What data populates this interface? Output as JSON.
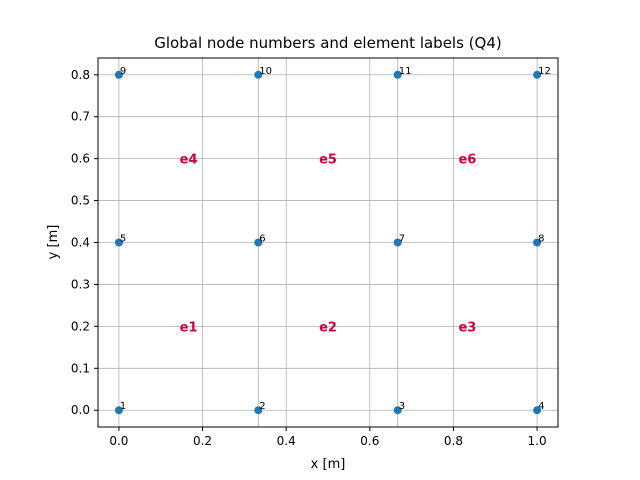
{
  "chart_data": {
    "type": "scatter",
    "title": "Global node numbers and element labels (Q4)",
    "xlabel": "x [m]",
    "ylabel": "y [m]",
    "xlim": [
      -0.05,
      1.05
    ],
    "ylim": [
      -0.04,
      0.84
    ],
    "grid": true,
    "x_ticks": [
      0.0,
      0.2,
      0.4,
      0.6,
      0.8,
      1.0
    ],
    "x_tick_labels": [
      "0.0",
      "0.2",
      "0.4",
      "0.6",
      "0.8",
      "1.0"
    ],
    "y_ticks": [
      0.0,
      0.1,
      0.2,
      0.3,
      0.4,
      0.5,
      0.6,
      0.7,
      0.8
    ],
    "y_tick_labels": [
      "0.0",
      "0.1",
      "0.2",
      "0.3",
      "0.4",
      "0.5",
      "0.6",
      "0.7",
      "0.8"
    ],
    "extra_vertical_gridlines": [
      0.3333,
      0.6667
    ],
    "marker_color": "#1f77b4",
    "element_label_color": "#d1003c",
    "nodes": [
      {
        "id": "1",
        "x": 0.0,
        "y": 0.0
      },
      {
        "id": "2",
        "x": 0.3333,
        "y": 0.0
      },
      {
        "id": "3",
        "x": 0.6667,
        "y": 0.0
      },
      {
        "id": "4",
        "x": 1.0,
        "y": 0.0
      },
      {
        "id": "5",
        "x": 0.0,
        "y": 0.4
      },
      {
        "id": "6",
        "x": 0.3333,
        "y": 0.4
      },
      {
        "id": "7",
        "x": 0.6667,
        "y": 0.4
      },
      {
        "id": "8",
        "x": 1.0,
        "y": 0.4
      },
      {
        "id": "9",
        "x": 0.0,
        "y": 0.8
      },
      {
        "id": "10",
        "x": 0.3333,
        "y": 0.8
      },
      {
        "id": "11",
        "x": 0.6667,
        "y": 0.8
      },
      {
        "id": "12",
        "x": 1.0,
        "y": 0.8
      }
    ],
    "elements": [
      {
        "label": "e1",
        "x": 0.1667,
        "y": 0.2
      },
      {
        "label": "e2",
        "x": 0.5,
        "y": 0.2
      },
      {
        "label": "e3",
        "x": 0.8333,
        "y": 0.2
      },
      {
        "label": "e4",
        "x": 0.1667,
        "y": 0.6
      },
      {
        "label": "e5",
        "x": 0.5,
        "y": 0.6
      },
      {
        "label": "e6",
        "x": 0.8333,
        "y": 0.6
      }
    ]
  }
}
